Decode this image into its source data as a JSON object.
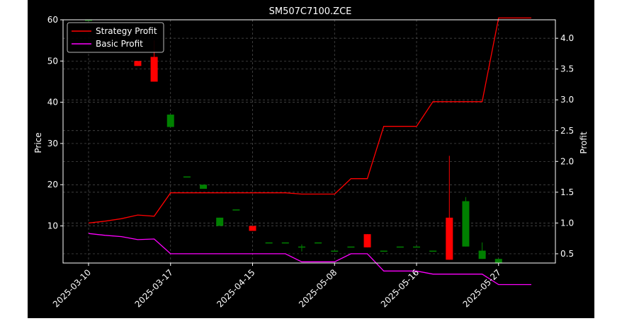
{
  "chart_data": {
    "type": "candlestick",
    "title": "SM507C7100.ZCE",
    "xlabel": "",
    "ylabel": "Price",
    "ylabel_right": "Profit",
    "ylim": [
      1,
      60
    ],
    "y2lim": [
      0.35,
      4.3
    ],
    "y_ticks": [
      10,
      20,
      30,
      40,
      50,
      60
    ],
    "y2_ticks": [
      0.5,
      1.0,
      1.5,
      2.0,
      2.5,
      3.0,
      3.5,
      4.0
    ],
    "x_tick_labels": [
      "2025-03-10",
      "2025-03-17",
      "2025-04-15",
      "2025-05-08",
      "2025-05-16",
      "2025-05-27"
    ],
    "x_tick_index": [
      0,
      5,
      10,
      15,
      20,
      25
    ],
    "grid": true,
    "legend_position": "top-left",
    "legend": [
      "Strategy Profit",
      "Basic Profit"
    ],
    "colors": {
      "background": "#000000",
      "up": "#008000",
      "down": "#ff0000",
      "strategy": "#ff0000",
      "basic": "#ff00ff",
      "grid": "#555555",
      "axes": "#ffffff"
    },
    "candles": [
      {
        "i": 0,
        "o": 60.0,
        "h": 60.0,
        "l": 60.0,
        "c": 60.0
      },
      {
        "i": 3,
        "o": 50.0,
        "h": 50.0,
        "l": 48.8,
        "c": 48.8
      },
      {
        "i": 4,
        "o": 51.0,
        "h": 55.0,
        "l": 45.0,
        "c": 45.0
      },
      {
        "i": 5,
        "o": 34.0,
        "h": 37.0,
        "l": 34.0,
        "c": 37.0
      },
      {
        "i": 6,
        "o": 22.0,
        "h": 22.0,
        "l": 22.0,
        "c": 22.0
      },
      {
        "i": 7,
        "o": 19.0,
        "h": 20.0,
        "l": 19.0,
        "c": 20.0
      },
      {
        "i": 8,
        "o": 10.0,
        "h": 12.0,
        "l": 10.0,
        "c": 12.0
      },
      {
        "i": 9,
        "o": 14.0,
        "h": 14.0,
        "l": 14.0,
        "c": 14.0
      },
      {
        "i": 10,
        "o": 10.0,
        "h": 10.0,
        "l": 8.8,
        "c": 8.8
      },
      {
        "i": 11,
        "o": 6.0,
        "h": 6.0,
        "l": 6.0,
        "c": 6.0
      },
      {
        "i": 12,
        "o": 6.0,
        "h": 6.0,
        "l": 6.0,
        "c": 6.0
      },
      {
        "i": 13,
        "o": 5.0,
        "h": 5.5,
        "l": 3.8,
        "c": 5.0
      },
      {
        "i": 14,
        "o": 6.0,
        "h": 6.0,
        "l": 6.0,
        "c": 6.0
      },
      {
        "i": 15,
        "o": 4.0,
        "h": 4.0,
        "l": 4.0,
        "c": 4.0
      },
      {
        "i": 16,
        "o": 5.0,
        "h": 5.0,
        "l": 5.0,
        "c": 5.0
      },
      {
        "i": 17,
        "o": 8.0,
        "h": 8.0,
        "l": 4.8,
        "c": 4.8
      },
      {
        "i": 18,
        "o": 4.0,
        "h": 4.0,
        "l": 4.0,
        "c": 4.0
      },
      {
        "i": 19,
        "o": 5.0,
        "h": 5.0,
        "l": 5.0,
        "c": 5.0
      },
      {
        "i": 20,
        "o": 5.0,
        "h": 5.0,
        "l": 5.0,
        "c": 5.0
      },
      {
        "i": 21,
        "o": 4.0,
        "h": 4.0,
        "l": 4.0,
        "c": 4.0
      },
      {
        "i": 22,
        "o": 12.0,
        "h": 27.0,
        "l": 1.8,
        "c": 1.8
      },
      {
        "i": 23,
        "o": 5.0,
        "h": 17.0,
        "l": 5.0,
        "c": 16.0
      },
      {
        "i": 24,
        "o": 2.0,
        "h": 6.0,
        "l": 2.0,
        "c": 4.0
      },
      {
        "i": 25,
        "o": 1.0,
        "h": 2.0,
        "l": 1.0,
        "c": 2.0
      }
    ],
    "series": [
      {
        "name": "Strategy Profit",
        "x": [
          0,
          1,
          2,
          3,
          4,
          5,
          6,
          7,
          8,
          9,
          10,
          11,
          12,
          13,
          14,
          15,
          16,
          17,
          18,
          19,
          20,
          21,
          22,
          23,
          24,
          25,
          26,
          27
        ],
        "y": [
          1.0,
          1.03,
          1.07,
          1.13,
          1.11,
          1.49,
          1.49,
          1.49,
          1.49,
          1.49,
          1.49,
          1.49,
          1.49,
          1.47,
          1.47,
          1.47,
          1.72,
          1.72,
          2.57,
          2.57,
          2.57,
          2.97,
          2.97,
          2.97,
          2.97,
          4.33,
          4.33,
          4.33
        ]
      },
      {
        "name": "Basic Profit",
        "x": [
          0,
          1,
          2,
          3,
          4,
          5,
          6,
          7,
          8,
          9,
          10,
          11,
          12,
          13,
          14,
          15,
          16,
          17,
          18,
          19,
          20,
          21,
          22,
          23,
          24,
          25,
          26,
          27
        ],
        "y": [
          0.83,
          0.8,
          0.78,
          0.73,
          0.74,
          0.5,
          0.5,
          0.5,
          0.5,
          0.5,
          0.5,
          0.5,
          0.5,
          0.37,
          0.37,
          0.37,
          0.5,
          0.5,
          0.22,
          0.22,
          0.22,
          0.17,
          0.17,
          0.17,
          0.17,
          0.0,
          0.0,
          0.0
        ]
      }
    ]
  }
}
